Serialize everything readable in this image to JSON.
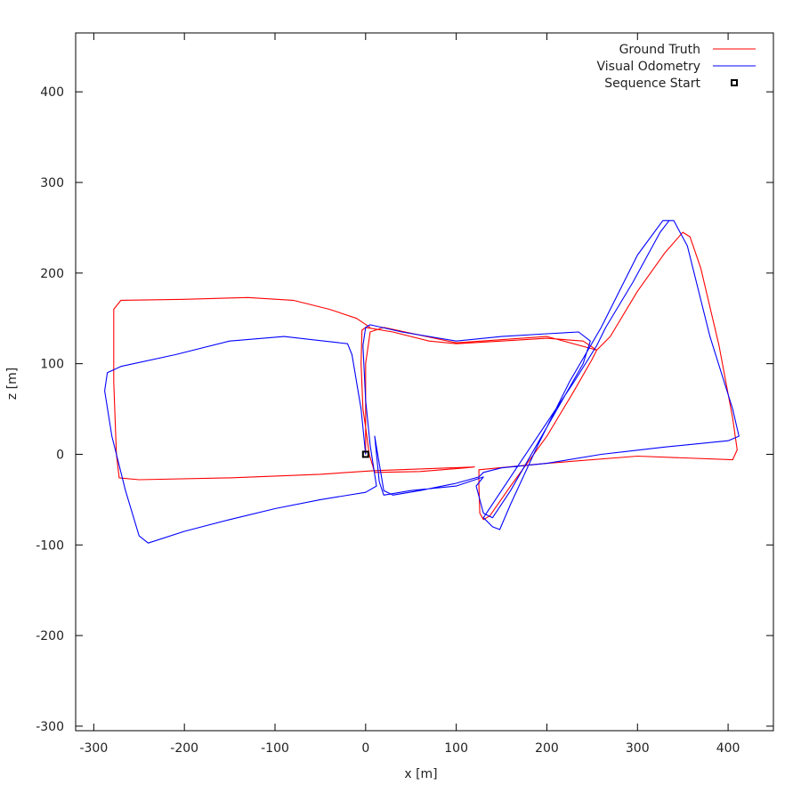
{
  "chart_data": {
    "type": "line",
    "xlabel": "x [m]",
    "ylabel": "z [m]",
    "xlim": [
      -320,
      450
    ],
    "ylim": [
      -305,
      465
    ],
    "xticks": [
      -300,
      -200,
      -100,
      0,
      100,
      200,
      300,
      400
    ],
    "yticks": [
      -300,
      -200,
      -100,
      0,
      100,
      200,
      300,
      400
    ],
    "legend_position": "top-right",
    "series": [
      {
        "name": "Ground Truth",
        "color": "#ff0000",
        "points": [
          [
            0,
            0
          ],
          [
            0,
            30
          ],
          [
            -3,
            50
          ],
          [
            -5,
            100
          ],
          [
            -4,
            137
          ],
          [
            0,
            140
          ],
          [
            30,
            135
          ],
          [
            70,
            125
          ],
          [
            100,
            122
          ],
          [
            150,
            125
          ],
          [
            200,
            128
          ],
          [
            240,
            125
          ],
          [
            255,
            115
          ],
          [
            270,
            130
          ],
          [
            300,
            180
          ],
          [
            330,
            222
          ],
          [
            350,
            245
          ],
          [
            358,
            240
          ],
          [
            370,
            205
          ],
          [
            390,
            120
          ],
          [
            405,
            40
          ],
          [
            410,
            5
          ],
          [
            405,
            -6
          ],
          [
            300,
            -2
          ],
          [
            200,
            -10
          ],
          [
            125,
            -17
          ],
          [
            125,
            -35
          ],
          [
            126,
            -65
          ],
          [
            130,
            -72
          ],
          [
            137,
            -68
          ],
          [
            160,
            -35
          ],
          [
            200,
            20
          ],
          [
            230,
            70
          ],
          [
            250,
            105
          ],
          [
            255,
            115
          ],
          [
            200,
            130
          ],
          [
            100,
            123
          ],
          [
            20,
            140
          ],
          [
            5,
            135
          ],
          [
            0,
            100
          ],
          [
            0,
            30
          ],
          [
            4,
            0
          ],
          [
            10,
            -20
          ],
          [
            60,
            -19
          ],
          [
            110,
            -15
          ],
          [
            120,
            -14
          ],
          [
            10,
            -18
          ],
          [
            -50,
            -22
          ],
          [
            -150,
            -26
          ],
          [
            -250,
            -28
          ],
          [
            -272,
            -26
          ],
          [
            -275,
            0
          ],
          [
            -278,
            80
          ],
          [
            -278,
            160
          ],
          [
            -270,
            170
          ],
          [
            -200,
            171
          ],
          [
            -130,
            173
          ],
          [
            -80,
            170
          ],
          [
            -40,
            160
          ],
          [
            -10,
            150
          ],
          [
            5,
            140
          ]
        ]
      },
      {
        "name": "Visual Odometry",
        "color": "#0000ff",
        "points": [
          [
            0,
            0
          ],
          [
            -5,
            50
          ],
          [
            -15,
            110
          ],
          [
            -20,
            122
          ],
          [
            -90,
            130
          ],
          [
            -150,
            125
          ],
          [
            -210,
            110
          ],
          [
            -270,
            97
          ],
          [
            -285,
            90
          ],
          [
            -288,
            70
          ],
          [
            -280,
            20
          ],
          [
            -265,
            -40
          ],
          [
            -250,
            -90
          ],
          [
            -240,
            -98
          ],
          [
            -200,
            -85
          ],
          [
            -150,
            -72
          ],
          [
            -100,
            -60
          ],
          [
            -50,
            -50
          ],
          [
            0,
            -42
          ],
          [
            12,
            -35
          ],
          [
            5,
            10
          ],
          [
            0,
            60
          ],
          [
            -3,
            120
          ],
          [
            0,
            140
          ],
          [
            5,
            143
          ],
          [
            40,
            135
          ],
          [
            100,
            125
          ],
          [
            150,
            130
          ],
          [
            200,
            133
          ],
          [
            235,
            135
          ],
          [
            248,
            125
          ],
          [
            240,
            100
          ],
          [
            200,
            30
          ],
          [
            160,
            -40
          ],
          [
            140,
            -70
          ],
          [
            130,
            -65
          ],
          [
            122,
            -35
          ],
          [
            130,
            -25
          ],
          [
            100,
            -35
          ],
          [
            50,
            -40
          ],
          [
            20,
            -45
          ],
          [
            15,
            -30
          ],
          [
            10,
            20
          ],
          [
            20,
            -40
          ],
          [
            30,
            -45
          ],
          [
            60,
            -40
          ],
          [
            100,
            -32
          ],
          [
            125,
            -25
          ],
          [
            130,
            -20
          ],
          [
            150,
            -15
          ],
          [
            200,
            -10
          ],
          [
            260,
            0
          ],
          [
            330,
            8
          ],
          [
            400,
            15
          ],
          [
            412,
            20
          ],
          [
            405,
            50
          ],
          [
            380,
            130
          ],
          [
            355,
            230
          ],
          [
            340,
            258
          ],
          [
            328,
            258
          ],
          [
            300,
            220
          ],
          [
            260,
            140
          ],
          [
            225,
            80
          ],
          [
            190,
            10
          ],
          [
            160,
            -55
          ],
          [
            148,
            -83
          ],
          [
            140,
            -80
          ],
          [
            130,
            -70
          ],
          [
            150,
            -40
          ],
          [
            170,
            -10
          ],
          [
            190,
            20
          ],
          [
            230,
            80
          ],
          [
            255,
            120
          ],
          [
            265,
            140
          ],
          [
            295,
            190
          ],
          [
            325,
            245
          ],
          [
            335,
            258
          ]
        ]
      }
    ],
    "markers": [
      {
        "name": "Sequence Start",
        "x": 0,
        "y": 0,
        "color": "#000000",
        "shape": "square"
      }
    ]
  }
}
